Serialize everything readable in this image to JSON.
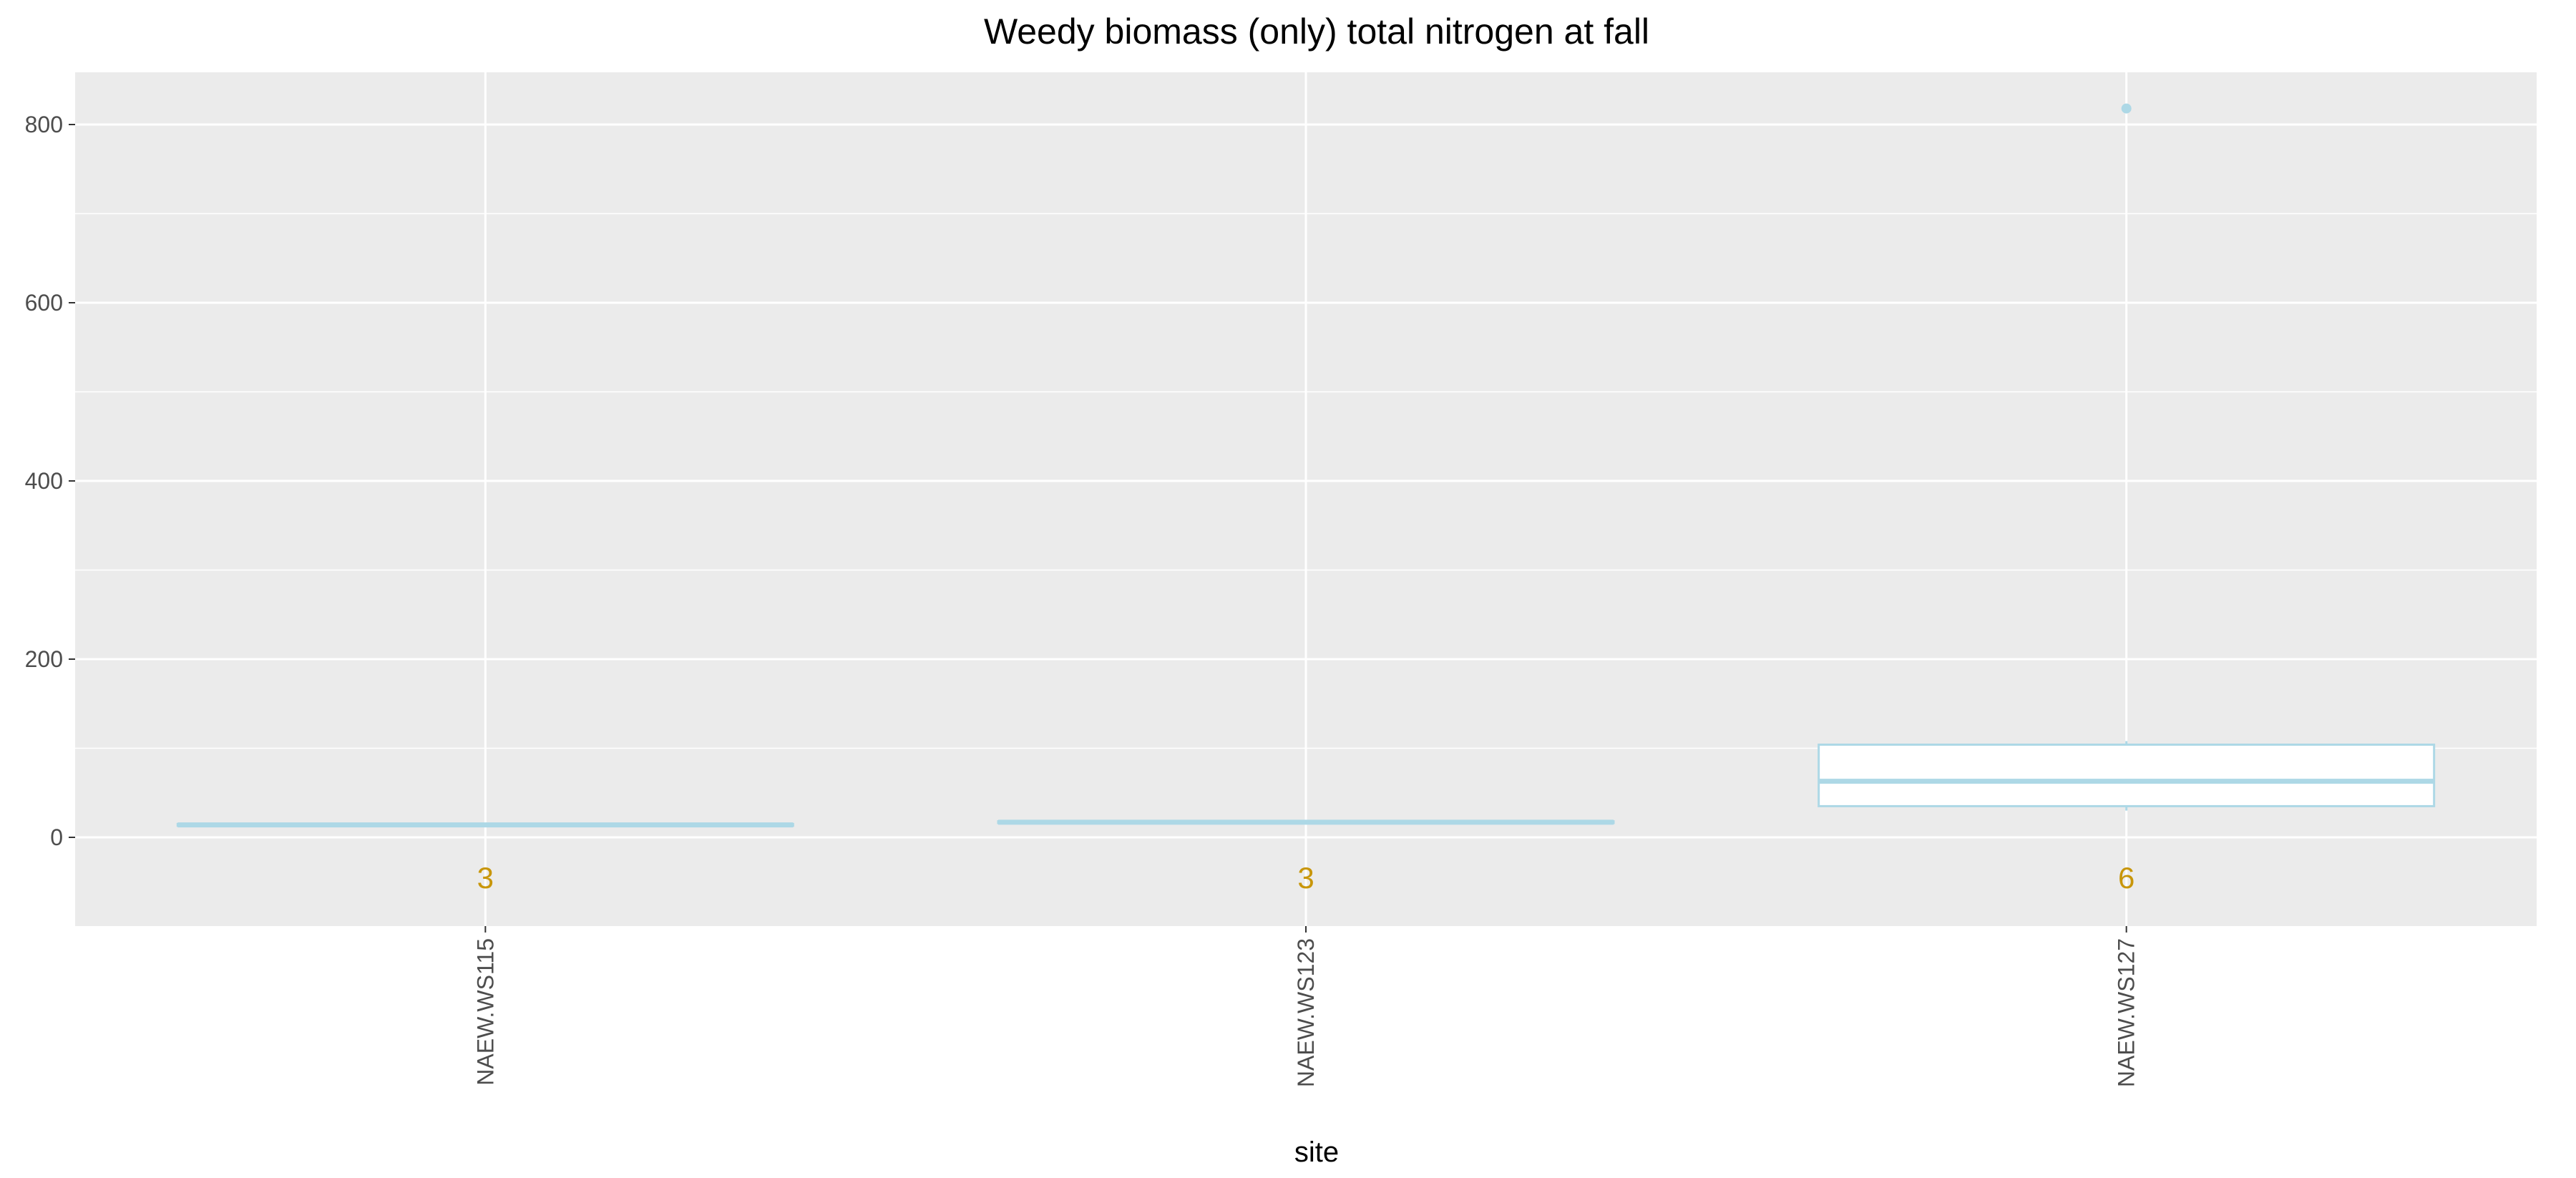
{
  "chart_data": {
    "type": "boxplot",
    "title": "Weedy biomass (only) total nitrogen at fall",
    "xlabel": "site",
    "ylabel": "",
    "ylim": [
      -100,
      860
    ],
    "yticks": [
      0,
      200,
      400,
      600,
      800
    ],
    "categories": [
      "NAEW.WS115",
      "NAEW.WS123",
      "NAEW.WS127"
    ],
    "boxes": [
      {
        "category": "NAEW.WS115",
        "min": 13,
        "q1": 13,
        "median": 14,
        "q3": 15,
        "max": 15,
        "outliers": [],
        "n": "3"
      },
      {
        "category": "NAEW.WS123",
        "min": 16,
        "q1": 16,
        "median": 17,
        "q3": 18,
        "max": 18,
        "outliers": [],
        "n": "3"
      },
      {
        "category": "NAEW.WS127",
        "min": 30,
        "q1": 35,
        "median": 63,
        "q3": 104,
        "max": 108,
        "outliers": [
          818
        ],
        "n": "6"
      }
    ],
    "grid": true,
    "legend": "none",
    "colors": {
      "panel_bg": "#ebebeb",
      "grid": "#ffffff",
      "box_stroke": "#add8e6",
      "box_fill": "#ffffff",
      "count_label": "#c8960a",
      "tick_text": "#4d4d4d"
    }
  }
}
